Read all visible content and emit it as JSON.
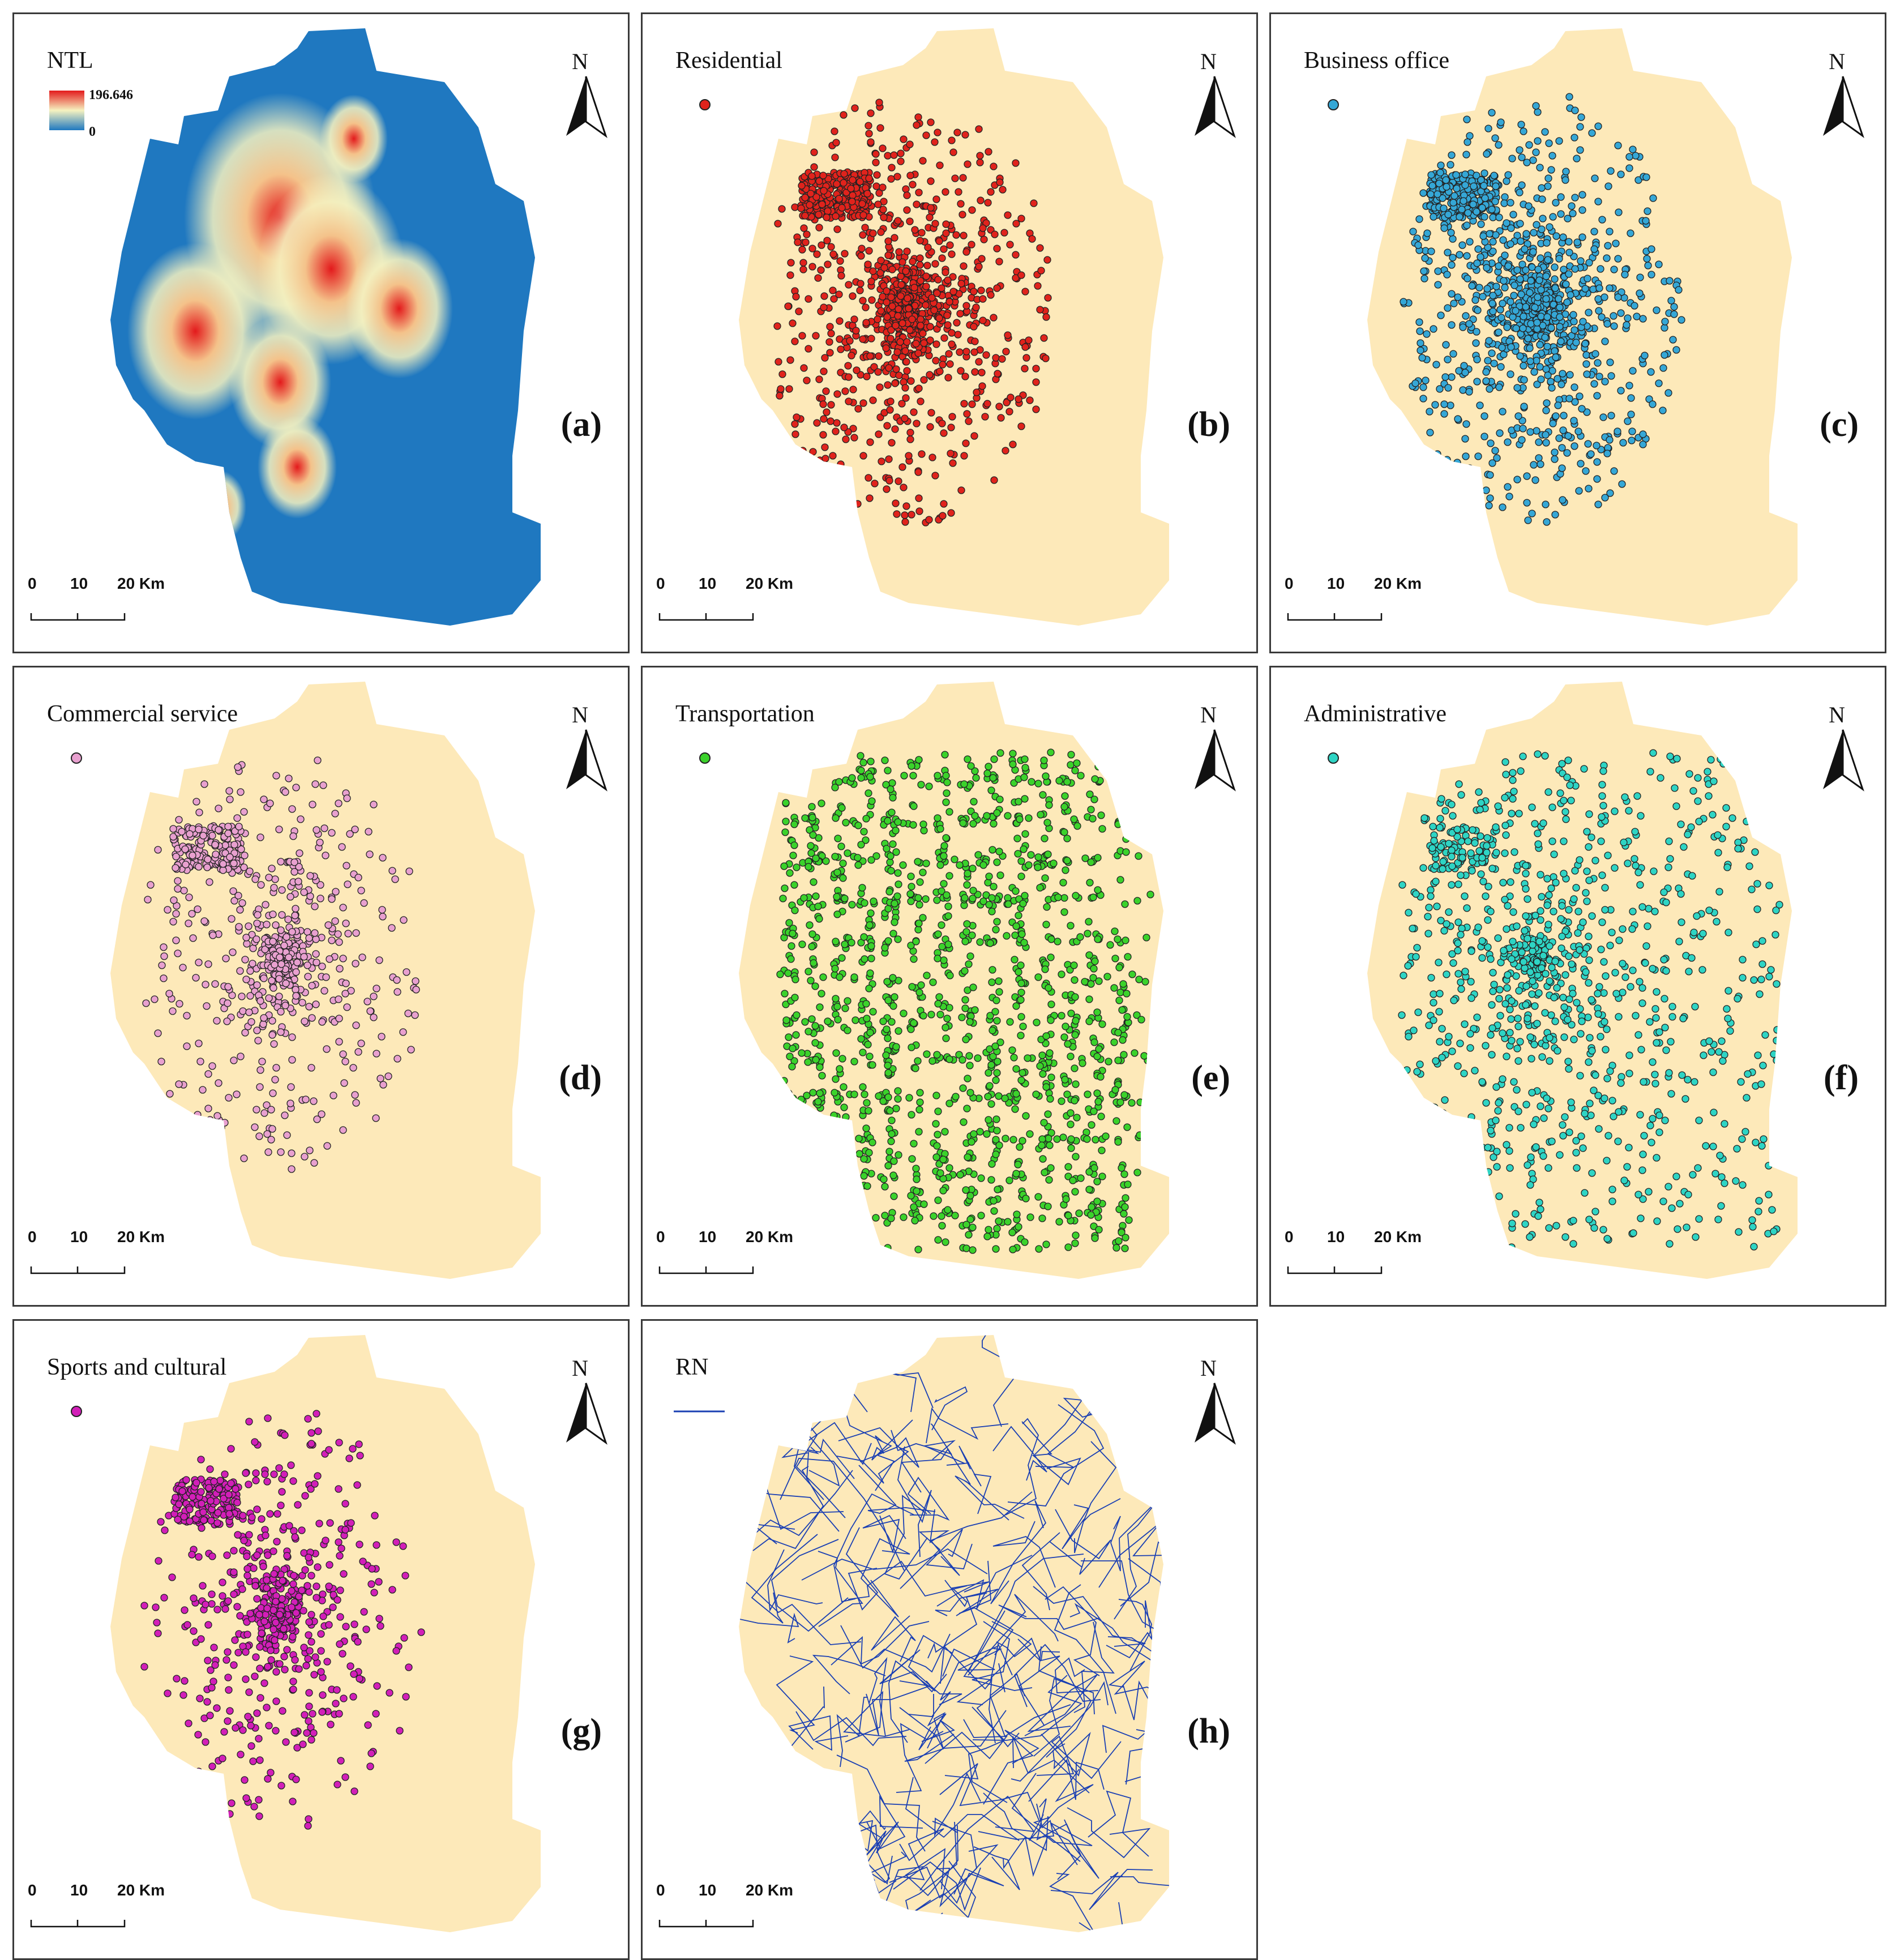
{
  "panels": [
    {
      "id": "a",
      "letter": "(a)",
      "legend": "NTL",
      "type": "ntl",
      "ntl_max": "196.646",
      "ntl_min": "0"
    },
    {
      "id": "b",
      "letter": "(b)",
      "legend": "Residential",
      "type": "poi",
      "color": "#e0231c",
      "density": "dense"
    },
    {
      "id": "c",
      "letter": "(c)",
      "legend": "Business office",
      "type": "poi",
      "color": "#35a7d6",
      "density": "dense"
    },
    {
      "id": "d",
      "letter": "(d)",
      "legend": "Commercial service",
      "type": "poi",
      "color": "#e8a0cf",
      "density": "medium"
    },
    {
      "id": "e",
      "letter": "(e)",
      "legend": "Transportation",
      "type": "poi",
      "color": "#3bd22b",
      "density": "roads"
    },
    {
      "id": "f",
      "letter": "(f)",
      "legend": "Administrative",
      "type": "poi",
      "color": "#2ed4c4",
      "density": "spread"
    },
    {
      "id": "g",
      "letter": "(g)",
      "legend": "Sports and cultural",
      "type": "poi",
      "color": "#d21fb8",
      "density": "medium"
    },
    {
      "id": "h",
      "letter": "(h)",
      "legend": "RN",
      "type": "road",
      "color": "#1a3fb3"
    }
  ],
  "north_label": "N",
  "scale_bar": {
    "t0": "0",
    "t1": "10",
    "t2": "20 Km"
  },
  "colors": {
    "land": "#fde9b9",
    "ntl_background": "#1f78c0",
    "ntl_mid": "#f6f2c0",
    "ntl_high": "#e31a1c",
    "outline": "#222222"
  }
}
